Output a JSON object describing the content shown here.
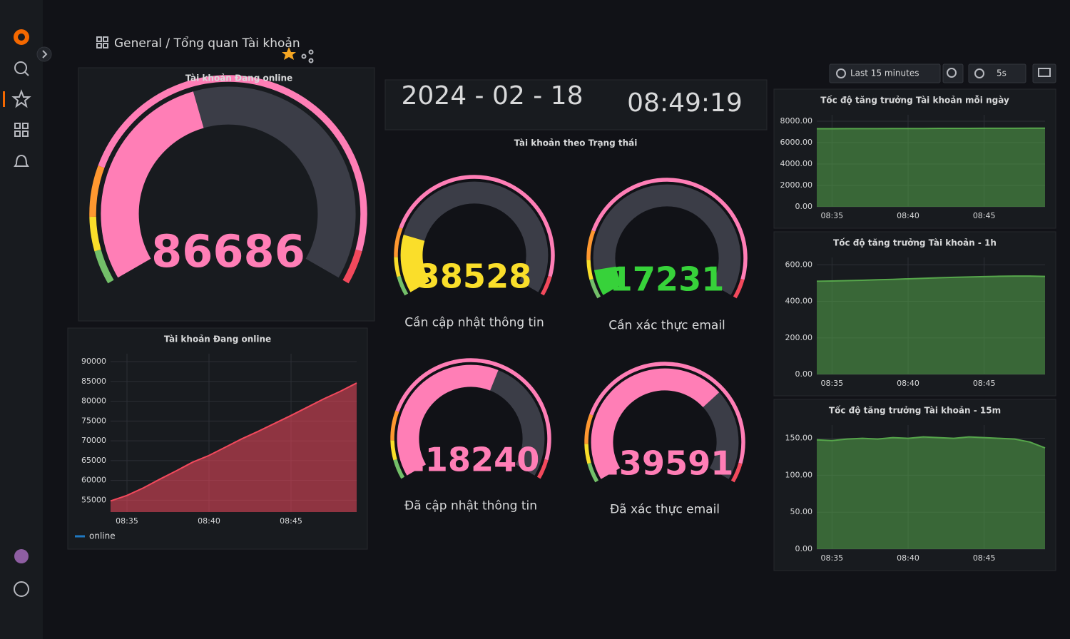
{
  "header": {
    "breadcrumb": "General / Tổng quan Tài khoản",
    "time_range": "Last 15 minutes",
    "refresh": "5s"
  },
  "clock": {
    "date": "2024 - 02 - 18",
    "time": "08:49:19"
  },
  "status_title": "Tài khoản theo Trạng thái",
  "gauge_thresholds": [
    {
      "value": 0,
      "color": "#73bf69"
    },
    {
      "value": 12000,
      "color": "#fade2a"
    },
    {
      "value": 24000,
      "color": "#ff9830"
    },
    {
      "value": 42000,
      "color": "#ff7eb6"
    },
    {
      "value": 188000,
      "color": "#f2495c"
    }
  ],
  "gauges": [
    {
      "title": "Tài khoản Đang online",
      "value": 86686,
      "range": [
        0,
        200000
      ],
      "color": "#ff7eb6"
    },
    {
      "label": "Cần cập nhật thông tin",
      "value": 38528,
      "range": [
        0,
        200000
      ],
      "color": "#fade2a"
    },
    {
      "label": "Cần xác thực email",
      "value": 17231,
      "range": [
        0,
        200000
      ],
      "color": "#37d23a"
    },
    {
      "label": "Đã cập nhật thông tin",
      "value": 118240,
      "range": [
        0,
        200000
      ],
      "color": "#ff7eb6"
    },
    {
      "label": "Đã xác thực email",
      "value": 139591,
      "range": [
        0,
        200000
      ],
      "color": "#ff7eb6"
    }
  ],
  "charts": [
    {
      "type": "area",
      "title": "Tài khoản Đang online",
      "x": [
        "08:34",
        "08:35",
        "08:36",
        "08:37",
        "08:38",
        "08:39",
        "08:40",
        "08:41",
        "08:42",
        "08:43",
        "08:44",
        "08:45",
        "08:46",
        "08:47",
        "08:48",
        "08:49"
      ],
      "series": [
        {
          "name": "online",
          "color": "#f2495c",
          "values": [
            54800,
            56200,
            58100,
            60300,
            62400,
            64600,
            66300,
            68400,
            70500,
            72400,
            74400,
            76400,
            78500,
            80600,
            82500,
            84600
          ]
        }
      ],
      "ylim": [
        52000,
        92000
      ],
      "yticks": [
        55000,
        60000,
        65000,
        70000,
        75000,
        80000,
        85000,
        90000
      ],
      "xticks": [
        "08:35",
        "08:40",
        "08:45"
      ],
      "legend": "bottom-left",
      "legend_color": "#1f78c1"
    },
    {
      "type": "area",
      "title": "Tốc độ tăng trưởng Tài khoản mỗi ngày",
      "x": [
        "08:34",
        "08:35",
        "08:36",
        "08:37",
        "08:38",
        "08:39",
        "08:40",
        "08:41",
        "08:42",
        "08:43",
        "08:44",
        "08:45",
        "08:46",
        "08:47",
        "08:48",
        "08:49"
      ],
      "series": [
        {
          "color": "#56a64b",
          "values": [
            7300,
            7300,
            7310,
            7310,
            7310,
            7320,
            7320,
            7320,
            7330,
            7330,
            7330,
            7340,
            7340,
            7340,
            7350,
            7350
          ]
        }
      ],
      "ylim": [
        0,
        8600
      ],
      "yticks": [
        {
          "value": 0,
          "label": "0.00"
        },
        {
          "value": 2000,
          "label": "2000.00"
        },
        {
          "value": 4000,
          "label": "4000.00"
        },
        {
          "value": 6000,
          "label": "6000.00"
        },
        {
          "value": 8000,
          "label": "8000.00"
        }
      ],
      "xticks": [
        "08:35",
        "08:40",
        "08:45"
      ]
    },
    {
      "type": "area",
      "title": "Tốc độ tăng trưởng Tài khoản - 1h",
      "x": [
        "08:34",
        "08:35",
        "08:36",
        "08:37",
        "08:38",
        "08:39",
        "08:40",
        "08:41",
        "08:42",
        "08:43",
        "08:44",
        "08:45",
        "08:46",
        "08:47",
        "08:48",
        "08:49"
      ],
      "series": [
        {
          "color": "#56a64b",
          "values": [
            510,
            511,
            513,
            515,
            518,
            520,
            523,
            526,
            529,
            531,
            533,
            535,
            537,
            538,
            538,
            536
          ]
        }
      ],
      "ylim": [
        0,
        640
      ],
      "yticks": [
        {
          "value": 0,
          "label": "0.00"
        },
        {
          "value": 200,
          "label": "200.00"
        },
        {
          "value": 400,
          "label": "400.00"
        },
        {
          "value": 600,
          "label": "600.00"
        }
      ],
      "xticks": [
        "08:35",
        "08:40",
        "08:45"
      ]
    },
    {
      "type": "area",
      "title": "Tốc độ tăng trưởng Tài khoản - 15m",
      "x": [
        "08:34",
        "08:35",
        "08:36",
        "08:37",
        "08:38",
        "08:39",
        "08:40",
        "08:41",
        "08:42",
        "08:43",
        "08:44",
        "08:45",
        "08:46",
        "08:47",
        "08:48",
        "08:49"
      ],
      "series": [
        {
          "color": "#56a64b",
          "values": [
            148,
            147,
            149,
            150,
            149,
            151,
            150,
            152,
            151,
            150,
            152,
            151,
            150,
            149,
            145,
            137
          ]
        }
      ],
      "ylim": [
        0,
        168
      ],
      "yticks": [
        {
          "value": 0,
          "label": "0.00"
        },
        {
          "value": 50,
          "label": "50.00"
        },
        {
          "value": 100,
          "label": "100.00"
        },
        {
          "value": 150,
          "label": "150.00"
        }
      ],
      "xticks": [
        "08:35",
        "08:40",
        "08:45"
      ]
    }
  ]
}
